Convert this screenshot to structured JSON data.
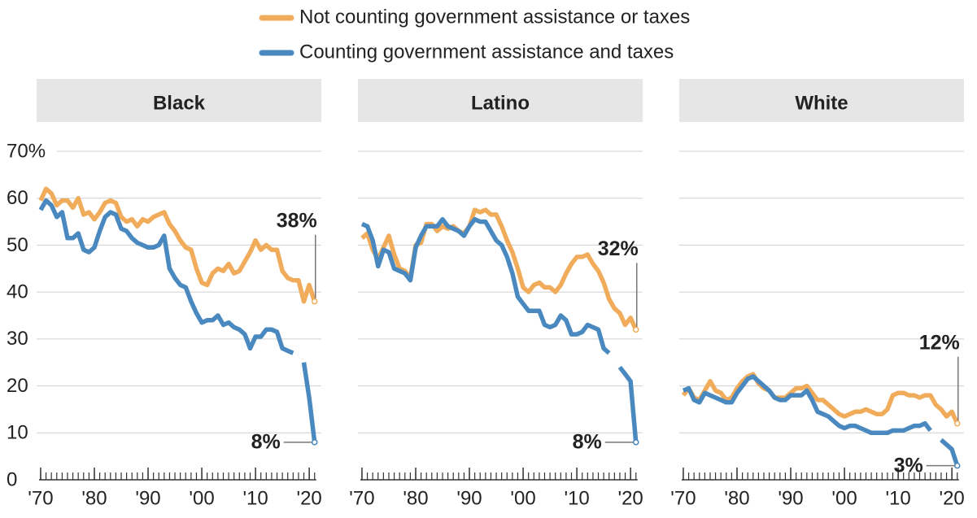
{
  "chart_data": [
    {
      "type": "line",
      "title": "Black",
      "x": [
        1970,
        1971,
        1972,
        1973,
        1974,
        1975,
        1976,
        1977,
        1978,
        1979,
        1980,
        1981,
        1982,
        1983,
        1984,
        1985,
        1986,
        1987,
        1988,
        1989,
        1990,
        1991,
        1992,
        1993,
        1994,
        1995,
        1996,
        1997,
        1998,
        1999,
        2000,
        2001,
        2002,
        2003,
        2004,
        2005,
        2006,
        2007,
        2008,
        2009,
        2010,
        2011,
        2012,
        2013,
        2014,
        2015,
        2016,
        2017,
        2018,
        2019,
        2020,
        2021
      ],
      "xlim": [
        1969.25,
        2022.25
      ],
      "xticks": [
        {
          "value": 1970,
          "label": "'70"
        },
        {
          "value": 1980,
          "label": "'80"
        },
        {
          "value": 1990,
          "label": "'90"
        },
        {
          "value": 2000,
          "label": "'00"
        },
        {
          "value": 2010,
          "label": "'10"
        },
        {
          "value": 2020,
          "label": "'20"
        }
      ],
      "ylim": [
        0,
        70
      ],
      "yticks": [
        0,
        10,
        20,
        30,
        40,
        50,
        60,
        {
          "value": 70,
          "label": "70%"
        }
      ],
      "grid": true,
      "series": [
        {
          "name": "Not counting government assistance or taxes",
          "color": "#f0ac5a",
          "values": [
            59.5,
            62,
            61,
            58.5,
            59.5,
            59.5,
            58,
            60,
            56.5,
            57,
            55.5,
            57,
            59,
            59.5,
            59,
            56,
            55,
            55.5,
            54,
            55.5,
            55,
            56,
            56.5,
            57,
            54.5,
            53,
            51,
            49.5,
            49,
            45,
            42,
            41.5,
            44,
            45,
            44.5,
            46,
            44,
            44.5,
            46.5,
            48.5,
            51,
            49,
            50,
            49,
            49,
            44.5,
            43,
            42.5,
            42.5,
            38,
            41.5,
            38
          ],
          "value_labels": [
            null,
            null,
            null,
            null,
            null,
            null,
            null,
            null,
            null,
            null,
            null,
            null,
            null,
            null,
            null,
            null,
            null,
            null,
            null,
            null,
            null,
            null,
            null,
            null,
            null,
            null,
            null,
            null,
            null,
            null,
            null,
            null,
            null,
            null,
            null,
            null,
            null,
            null,
            null,
            null,
            null,
            null,
            null,
            null,
            null,
            null,
            null,
            null,
            null,
            null,
            null,
            "38%"
          ]
        },
        {
          "name": "Counting government assistance and taxes",
          "color": "#4a89bf",
          "values": [
            57.5,
            59.5,
            58.5,
            56,
            57,
            51.5,
            51.5,
            52.5,
            49,
            48.5,
            49.5,
            53,
            56,
            57,
            56.5,
            53.5,
            53,
            51.5,
            50.5,
            50,
            49.5,
            49.5,
            50,
            52,
            45,
            43,
            41.5,
            41,
            38,
            35.5,
            33.5,
            34,
            34,
            35,
            33,
            33.5,
            32.5,
            32,
            31,
            28,
            30.5,
            30.5,
            32,
            32,
            31.5,
            28,
            27.5,
            27,
            null,
            25,
            17.5,
            8
          ],
          "value_labels": [
            null,
            null,
            null,
            null,
            null,
            null,
            null,
            null,
            null,
            null,
            null,
            null,
            null,
            null,
            null,
            null,
            null,
            null,
            null,
            null,
            null,
            null,
            null,
            null,
            null,
            null,
            null,
            null,
            null,
            null,
            null,
            null,
            null,
            null,
            null,
            null,
            null,
            null,
            null,
            null,
            null,
            null,
            null,
            null,
            null,
            null,
            null,
            null,
            null,
            null,
            null,
            "8%"
          ]
        }
      ]
    },
    {
      "type": "line",
      "title": "Latino",
      "x": [
        1970,
        1971,
        1972,
        1973,
        1974,
        1975,
        1976,
        1977,
        1978,
        1979,
        1980,
        1981,
        1982,
        1983,
        1984,
        1985,
        1986,
        1987,
        1988,
        1989,
        1990,
        1991,
        1992,
        1993,
        1994,
        1995,
        1996,
        1997,
        1998,
        1999,
        2000,
        2001,
        2002,
        2003,
        2004,
        2005,
        2006,
        2007,
        2008,
        2009,
        2010,
        2011,
        2012,
        2013,
        2014,
        2015,
        2016,
        2017,
        2018,
        2019,
        2020,
        2021
      ],
      "xlim": [
        1969.25,
        2022.25
      ],
      "xticks": [
        {
          "value": 1970,
          "label": "'70"
        },
        {
          "value": 1980,
          "label": "'80"
        },
        {
          "value": 1990,
          "label": "'90"
        },
        {
          "value": 2000,
          "label": "'00"
        },
        {
          "value": 2010,
          "label": "'10"
        },
        {
          "value": 2020,
          "label": "'20"
        }
      ],
      "ylim": [
        0,
        70
      ],
      "grid": true,
      "series": [
        {
          "color": "#f0ac5a",
          "values": [
            51.5,
            52.5,
            49,
            47,
            49.5,
            52,
            48,
            45,
            44.5,
            43,
            50,
            50.5,
            54.5,
            54.5,
            53,
            54,
            53.5,
            54,
            53,
            52.5,
            54,
            57.5,
            57,
            57.5,
            56.5,
            56.5,
            54,
            51,
            48.5,
            45,
            41,
            40,
            41.5,
            42,
            41,
            41,
            40,
            41.5,
            44,
            46,
            47.5,
            47.5,
            48,
            46,
            44.5,
            42,
            38.5,
            36.5,
            35.5,
            33,
            34.5,
            32
          ],
          "value_labels": [
            null,
            null,
            null,
            null,
            null,
            null,
            null,
            null,
            null,
            null,
            null,
            null,
            null,
            null,
            null,
            null,
            null,
            null,
            null,
            null,
            null,
            null,
            null,
            null,
            null,
            null,
            null,
            null,
            null,
            null,
            null,
            null,
            null,
            null,
            null,
            null,
            null,
            null,
            null,
            null,
            null,
            null,
            null,
            null,
            null,
            null,
            null,
            null,
            null,
            null,
            null,
            "32%"
          ]
        },
        {
          "color": "#4a89bf",
          "values": [
            54.5,
            54,
            51,
            45.5,
            49,
            48.5,
            45,
            44.5,
            44,
            42.5,
            49.5,
            52,
            54,
            54,
            54,
            55.5,
            54,
            53.5,
            53,
            52,
            54,
            55.5,
            55,
            55,
            53,
            51,
            50,
            47.5,
            44,
            39,
            37.5,
            36,
            36,
            36,
            33,
            32.5,
            33,
            35,
            34,
            31,
            31,
            31.5,
            33,
            32.5,
            32,
            28,
            27,
            null,
            24,
            22.5,
            21,
            8
          ],
          "value_labels": [
            null,
            null,
            null,
            null,
            null,
            null,
            null,
            null,
            null,
            null,
            null,
            null,
            null,
            null,
            null,
            null,
            null,
            null,
            null,
            null,
            null,
            null,
            null,
            null,
            null,
            null,
            null,
            null,
            null,
            null,
            null,
            null,
            null,
            null,
            null,
            null,
            null,
            null,
            null,
            null,
            null,
            null,
            null,
            null,
            null,
            null,
            null,
            null,
            null,
            null,
            null,
            "8%"
          ]
        }
      ]
    },
    {
      "type": "line",
      "title": "White",
      "x": [
        1970,
        1971,
        1972,
        1973,
        1974,
        1975,
        1976,
        1977,
        1978,
        1979,
        1980,
        1981,
        1982,
        1983,
        1984,
        1985,
        1986,
        1987,
        1988,
        1989,
        1990,
        1991,
        1992,
        1993,
        1994,
        1995,
        1996,
        1997,
        1998,
        1999,
        2000,
        2001,
        2002,
        2003,
        2004,
        2005,
        2006,
        2007,
        2008,
        2009,
        2010,
        2011,
        2012,
        2013,
        2014,
        2015,
        2016,
        2017,
        2018,
        2019,
        2020,
        2021
      ],
      "xlim": [
        1969.25,
        2022.25
      ],
      "xticks": [
        {
          "value": 1970,
          "label": "'70"
        },
        {
          "value": 1980,
          "label": "'80"
        },
        {
          "value": 1990,
          "label": "'90"
        },
        {
          "value": 2000,
          "label": "'00"
        },
        {
          "value": 2010,
          "label": "'10"
        },
        {
          "value": 2020,
          "label": "'20"
        }
      ],
      "ylim": [
        0,
        70
      ],
      "grid": true,
      "series": [
        {
          "color": "#f0ac5a",
          "values": [
            18,
            19.5,
            17.5,
            17,
            19,
            21,
            19,
            18.5,
            17,
            17.5,
            19.5,
            21,
            22,
            22.5,
            20.5,
            19.5,
            19,
            17.5,
            17.5,
            17.5,
            18.5,
            19.5,
            19.5,
            20,
            18.5,
            17,
            17,
            16,
            15,
            14,
            13.5,
            14,
            14.5,
            14.5,
            15,
            14.5,
            14,
            14,
            15,
            18,
            18.5,
            18.5,
            18,
            18,
            17.5,
            18,
            18,
            16,
            15,
            13.5,
            14.5,
            12
          ],
          "value_labels": [
            null,
            null,
            null,
            null,
            null,
            null,
            null,
            null,
            null,
            null,
            null,
            null,
            null,
            null,
            null,
            null,
            null,
            null,
            null,
            null,
            null,
            null,
            null,
            null,
            null,
            null,
            null,
            null,
            null,
            null,
            null,
            null,
            null,
            null,
            null,
            null,
            null,
            null,
            null,
            null,
            null,
            null,
            null,
            null,
            null,
            null,
            null,
            null,
            null,
            null,
            null,
            "12%"
          ]
        },
        {
          "color": "#4a89bf",
          "values": [
            19,
            19.5,
            17,
            16.5,
            18.5,
            18,
            17.5,
            17,
            16.5,
            16.5,
            18.5,
            20,
            21.5,
            22,
            21,
            20,
            19,
            17.5,
            17,
            17,
            18,
            18,
            18,
            19,
            17,
            14.5,
            14,
            13.5,
            12.5,
            11.5,
            11,
            11.5,
            11.5,
            11,
            10.5,
            10,
            10,
            10,
            10,
            10.5,
            10.5,
            10.5,
            11,
            11.5,
            11.5,
            12,
            10.5,
            null,
            8.5,
            7.5,
            6.5,
            3
          ],
          "value_labels": [
            null,
            null,
            null,
            null,
            null,
            null,
            null,
            null,
            null,
            null,
            null,
            null,
            null,
            null,
            null,
            null,
            null,
            null,
            null,
            null,
            null,
            null,
            null,
            null,
            null,
            null,
            null,
            null,
            null,
            null,
            null,
            null,
            null,
            null,
            null,
            null,
            null,
            null,
            null,
            null,
            null,
            null,
            null,
            null,
            null,
            null,
            null,
            null,
            null,
            null,
            null,
            "3%"
          ]
        }
      ]
    }
  ]
}
